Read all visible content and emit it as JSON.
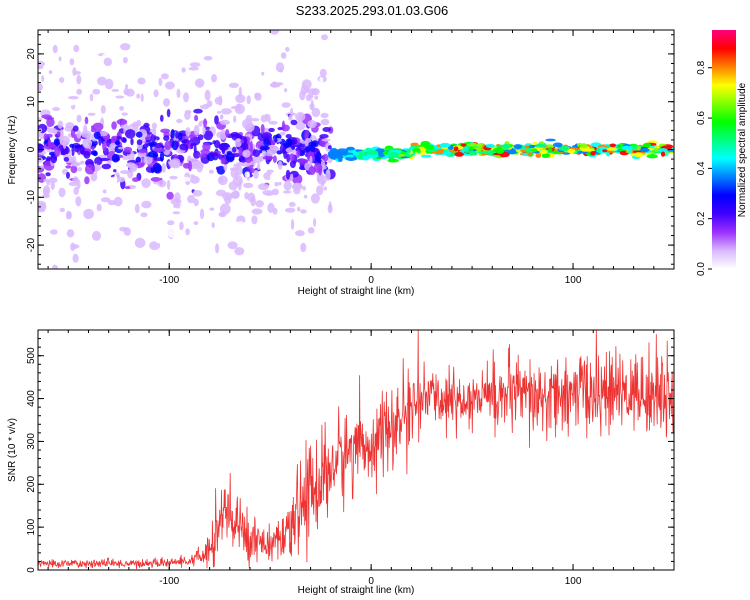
{
  "title": "S233.2025.293.01.03.G06",
  "colorbar": {
    "label": "Normalized spectral amplitude",
    "range": [
      0,
      0.95
    ],
    "tick_labels": [
      "0.0",
      "0.2",
      "0.4",
      "0.6",
      "0.8"
    ],
    "tick_values": [
      0,
      0.2,
      0.4,
      0.6,
      0.8
    ],
    "colors": [
      "#ffffff",
      "#d9b8ff",
      "#9b30ff",
      "#4000ff",
      "#0000ff",
      "#0080ff",
      "#00ffff",
      "#00ff80",
      "#00ff00",
      "#80ff00",
      "#ffff00",
      "#ff8000",
      "#ff0000",
      "#ff0080"
    ]
  },
  "chart_data": [
    {
      "type": "heatmap",
      "title": "",
      "xlabel": "Height of straight line (km)",
      "ylabel": "Frequency (Hz)",
      "xlim": [
        -165,
        150
      ],
      "ylim": [
        -25,
        25
      ],
      "x_tick_labels": [
        "-100",
        "0",
        "100"
      ],
      "x_tick_values": [
        -100,
        0,
        100
      ],
      "y_tick_labels": [
        "-20",
        "-10",
        "0",
        "10",
        "20"
      ],
      "y_tick_values": [
        -20,
        -10,
        0,
        10,
        20
      ],
      "description_regions": [
        {
          "x_range": [
            -165,
            -20
          ],
          "freq_center": 0,
          "freq_spread": 20,
          "amplitude": 0.3
        },
        {
          "x_range": [
            -20,
            150
          ],
          "freq_center": 0,
          "freq_spread": 1.5,
          "amplitude": 0.85
        }
      ]
    },
    {
      "type": "line",
      "title": "",
      "xlabel": "Height of straight line (km)",
      "ylabel": "SNR (10 * v/v)",
      "xlim": [
        -165,
        150
      ],
      "ylim": [
        0,
        560
      ],
      "x_tick_labels": [
        "-100",
        "0",
        "100"
      ],
      "x_tick_values": [
        -100,
        0,
        100
      ],
      "y_tick_labels": [
        "0",
        "100",
        "200",
        "300",
        "400",
        "500"
      ],
      "y_tick_values": [
        0,
        100,
        200,
        300,
        400,
        500
      ],
      "series": [
        {
          "name": "SNR",
          "color": "#ee3333",
          "x": [
            -165,
            -150,
            -130,
            -110,
            -90,
            -82,
            -78,
            -72,
            -68,
            -62,
            -55,
            -48,
            -42,
            -35,
            -30,
            -25,
            -20,
            -15,
            -10,
            -5,
            0,
            5,
            10,
            15,
            20,
            25,
            30,
            40,
            50,
            60,
            70,
            80,
            90,
            100,
            110,
            120,
            130,
            140,
            150
          ],
          "values": [
            15,
            15,
            15,
            15,
            20,
            35,
            90,
            130,
            110,
            80,
            70,
            60,
            65,
            150,
            190,
            200,
            240,
            260,
            280,
            300,
            290,
            320,
            320,
            350,
            380,
            400,
            405,
            395,
            400,
            410,
            405,
            395,
            400,
            410,
            420,
            410,
            415,
            410,
            410
          ],
          "noise": [
            5,
            5,
            5,
            5,
            5,
            15,
            40,
            50,
            45,
            30,
            25,
            20,
            30,
            50,
            60,
            55,
            60,
            55,
            50,
            45,
            40,
            50,
            45,
            50,
            45,
            35,
            30,
            35,
            40,
            40,
            45,
            50,
            45,
            45,
            50,
            45,
            45,
            50,
            50
          ]
        }
      ]
    }
  ]
}
